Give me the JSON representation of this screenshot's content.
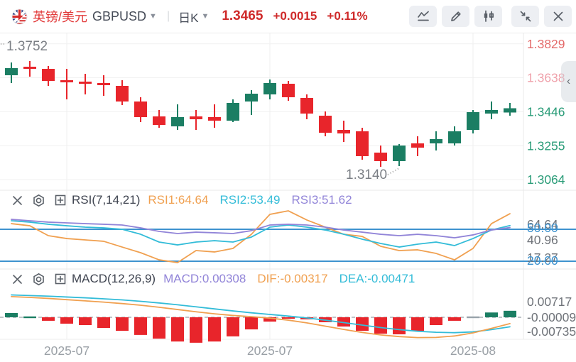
{
  "header": {
    "pair_cn": "英镑/美元",
    "symbol": "GBPUSD",
    "timeframe": "日K",
    "price": "1.3465",
    "change": "+0.0015",
    "change_pct": "+0.11%",
    "up_color": "#cf2a2a",
    "toolbar_icons": [
      "line-chart",
      "draw-pencil",
      "candlestick",
      "shrink",
      "close"
    ]
  },
  "main_chart": {
    "high_annotation": "1.3752",
    "low_annotation": "1.3140",
    "collapse_chevron": "‹",
    "y_ticks": [
      {
        "label": "1.3829",
        "color": "#e46a6a"
      },
      {
        "label": "1.3638",
        "color": "#efa0aa"
      },
      {
        "label": "1.3446",
        "color": "#2a9c78"
      },
      {
        "label": "1.3255",
        "color": "#2a9c78"
      },
      {
        "label": "1.3064",
        "color": "#2a9c78"
      }
    ]
  },
  "rsi_panel": {
    "title": "RSI(7,14,21)",
    "legend": [
      {
        "label": "RSI1:64.64",
        "color": "#f0a050"
      },
      {
        "label": "RSI2:53.49",
        "color": "#33bcd8"
      },
      {
        "label": "RSI3:51.62",
        "color": "#9184d8"
      }
    ],
    "axis_gray": [
      "64.64",
      "40.96",
      "17.27"
    ],
    "axis_blue": [
      "50.00",
      "20.00"
    ]
  },
  "macd_panel": {
    "title": "MACD(12,26,9)",
    "legend": [
      {
        "label": "MACD:0.00308",
        "color": "#9184d8"
      },
      {
        "label": "DIF:-0.00317",
        "color": "#f0a050"
      },
      {
        "label": "DEA:-0.00471",
        "color": "#33bcd8"
      }
    ],
    "axis_gray": [
      "0.00717",
      "-0.00009",
      "-0.00735"
    ]
  },
  "chart_data": {
    "type": "candlestick+indicators",
    "symbol": "GBPUSD",
    "interval": "daily",
    "up_color": "#1b7e63",
    "down_color": "#e8252b",
    "guide_line_color": "#3f93cf",
    "y_axis_ticks": [
      1.3829,
      1.3638,
      1.3446,
      1.3255,
      1.3064
    ],
    "x_labels": [
      {
        "label": "2025-07",
        "index": 3
      },
      {
        "label": "2025-07",
        "index": 14
      },
      {
        "label": "2025-08",
        "index": 25
      }
    ],
    "candles": [
      {
        "o": 1.3652,
        "h": 1.3724,
        "l": 1.3608,
        "c": 1.3692
      },
      {
        "o": 1.37,
        "h": 1.3732,
        "l": 1.3644,
        "c": 1.3688
      },
      {
        "o": 1.3688,
        "h": 1.3704,
        "l": 1.3592,
        "c": 1.362
      },
      {
        "o": 1.3624,
        "h": 1.3688,
        "l": 1.3516,
        "c": 1.3612
      },
      {
        "o": 1.3616,
        "h": 1.366,
        "l": 1.3544,
        "c": 1.3604
      },
      {
        "o": 1.3608,
        "h": 1.3652,
        "l": 1.3536,
        "c": 1.3596
      },
      {
        "o": 1.3592,
        "h": 1.3624,
        "l": 1.3484,
        "c": 1.3504
      },
      {
        "o": 1.3504,
        "h": 1.3528,
        "l": 1.3388,
        "c": 1.3416
      },
      {
        "o": 1.342,
        "h": 1.3456,
        "l": 1.3356,
        "c": 1.3372
      },
      {
        "o": 1.3364,
        "h": 1.3488,
        "l": 1.3344,
        "c": 1.3416
      },
      {
        "o": 1.342,
        "h": 1.3456,
        "l": 1.3344,
        "c": 1.3404
      },
      {
        "o": 1.3416,
        "h": 1.3488,
        "l": 1.3356,
        "c": 1.3396
      },
      {
        "o": 1.3396,
        "h": 1.3516,
        "l": 1.3388,
        "c": 1.3496
      },
      {
        "o": 1.3504,
        "h": 1.3568,
        "l": 1.3428,
        "c": 1.3548
      },
      {
        "o": 1.3544,
        "h": 1.3628,
        "l": 1.3516,
        "c": 1.3608
      },
      {
        "o": 1.3604,
        "h": 1.362,
        "l": 1.3508,
        "c": 1.3528
      },
      {
        "o": 1.3524,
        "h": 1.3544,
        "l": 1.3404,
        "c": 1.3436
      },
      {
        "o": 1.3424,
        "h": 1.3448,
        "l": 1.3308,
        "c": 1.3328
      },
      {
        "o": 1.3344,
        "h": 1.3396,
        "l": 1.3276,
        "c": 1.3324
      },
      {
        "o": 1.3336,
        "h": 1.3356,
        "l": 1.3176,
        "c": 1.3196
      },
      {
        "o": 1.3216,
        "h": 1.3256,
        "l": 1.3136,
        "c": 1.3168
      },
      {
        "o": 1.3168,
        "h": 1.3264,
        "l": 1.314,
        "c": 1.3256
      },
      {
        "o": 1.3268,
        "h": 1.3308,
        "l": 1.3196,
        "c": 1.3244
      },
      {
        "o": 1.3268,
        "h": 1.3336,
        "l": 1.3228,
        "c": 1.3292
      },
      {
        "o": 1.3268,
        "h": 1.3364,
        "l": 1.3256,
        "c": 1.3336
      },
      {
        "o": 1.3344,
        "h": 1.3456,
        "l": 1.3324,
        "c": 1.3444
      },
      {
        "o": 1.3436,
        "h": 1.3504,
        "l": 1.3404,
        "c": 1.3456
      },
      {
        "o": 1.3442,
        "h": 1.3496,
        "l": 1.3424,
        "c": 1.3466
      }
    ],
    "rsi": {
      "guides": [
        50,
        20
      ],
      "rsi1": [
        55.3,
        53.3,
        44.0,
        41.3,
        40.0,
        38.7,
        33.3,
        28.0,
        21.3,
        18.7,
        30.0,
        28.7,
        32.0,
        45.3,
        64.0,
        67.3,
        58.7,
        52.0,
        45.3,
        43.3,
        34.0,
        30.0,
        30.7,
        27.3,
        21.3,
        32.0,
        55.3,
        64.64
      ],
      "rsi2": [
        58.0,
        56.7,
        54.7,
        53.3,
        52.0,
        51.3,
        50.0,
        45.3,
        38.0,
        35.3,
        38.0,
        39.3,
        38.0,
        42.7,
        52.0,
        54.0,
        52.0,
        49.3,
        45.3,
        40.7,
        36.7,
        33.3,
        36.0,
        38.0,
        34.7,
        41.3,
        49.3,
        53.49
      ],
      "rsi3": [
        59.3,
        58.0,
        56.7,
        56.0,
        55.3,
        54.7,
        54.0,
        51.3,
        48.0,
        46.0,
        47.3,
        46.7,
        46.0,
        48.7,
        54.0,
        54.7,
        54.0,
        52.0,
        49.3,
        47.3,
        45.3,
        44.0,
        45.3,
        44.0,
        42.0,
        44.7,
        49.3,
        51.62
      ]
    },
    "macd": {
      "hist": [
        0.002,
        0.0003,
        -0.0018,
        -0.0032,
        -0.0039,
        -0.0053,
        -0.0067,
        -0.0087,
        -0.0105,
        -0.0119,
        -0.0125,
        -0.0119,
        -0.0094,
        -0.006,
        -0.0022,
        -0.0008,
        -0.0011,
        -0.0025,
        -0.0046,
        -0.0067,
        -0.0081,
        -0.0084,
        -0.0067,
        -0.0039,
        -0.0018,
        -0.0001,
        0.00225,
        0.00308
      ],
      "dif": [
        0.01,
        0.0096,
        0.0091,
        0.0085,
        0.0079,
        0.0073,
        0.0066,
        0.0058,
        0.0048,
        0.0037,
        0.0026,
        0.0016,
        0.0008,
        0.0002,
        -0.0005,
        -0.0015,
        -0.0028,
        -0.0044,
        -0.006,
        -0.0075,
        -0.0087,
        -0.0095,
        -0.01,
        -0.0099,
        -0.0092,
        -0.0077,
        -0.0055,
        -0.00317
      ],
      "dea": [
        0.0108,
        0.0105,
        0.0102,
        0.0098,
        0.0094,
        0.0089,
        0.0084,
        0.0077,
        0.0069,
        0.006,
        0.005,
        0.004,
        0.003,
        0.0021,
        0.0013,
        0.0005,
        -0.0004,
        -0.0015,
        -0.0027,
        -0.0039,
        -0.0051,
        -0.0061,
        -0.0069,
        -0.0074,
        -0.0076,
        -0.0072,
        -0.0061,
        -0.00471
      ]
    }
  }
}
